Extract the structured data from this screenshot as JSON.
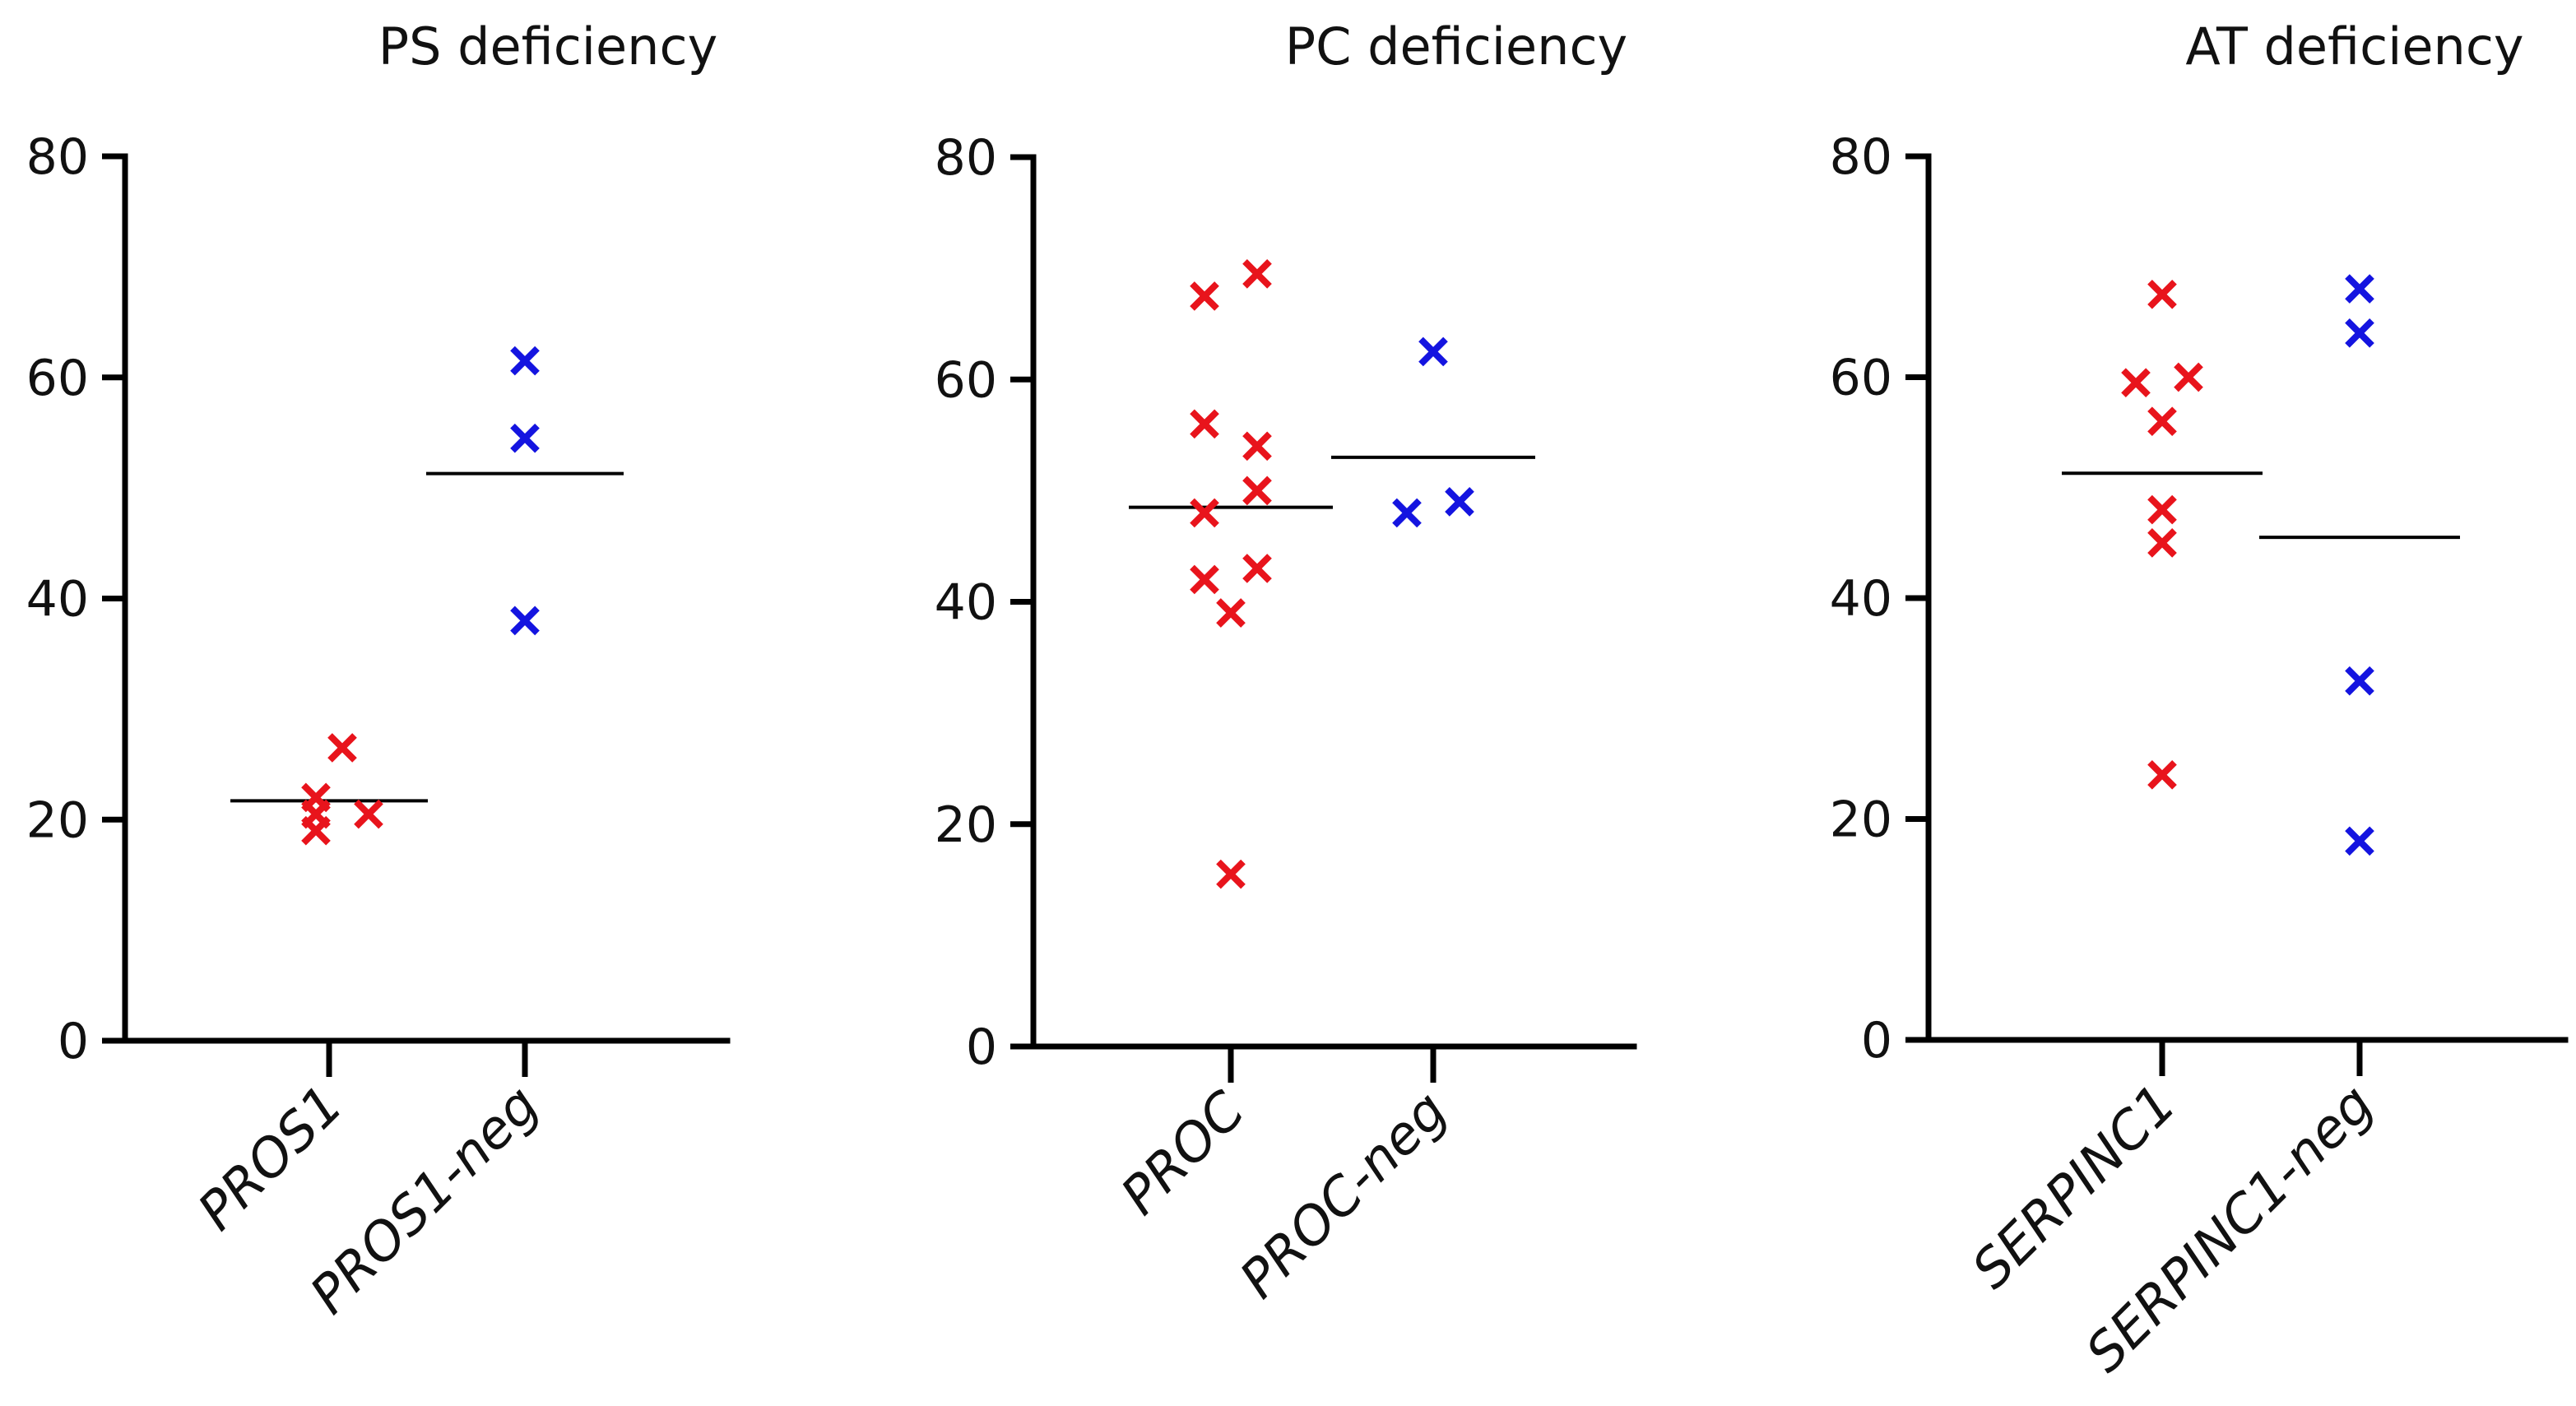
{
  "colors": {
    "group1": "#e8141c",
    "group2": "#1414e0",
    "axis": "#000000"
  },
  "chart_data": [
    {
      "type": "scatter",
      "title": "PS deficiency",
      "ylim": [
        0,
        80
      ],
      "yticks": [
        0,
        20,
        40,
        60,
        80
      ],
      "categories": [
        "PROS1",
        "PROS1-neg"
      ],
      "series": [
        {
          "category": "PROS1",
          "points": [
            {
              "offset": -0.5,
              "y": 22
            },
            {
              "offset": 0.5,
              "y": 26.5
            },
            {
              "offset": -0.5,
              "y": 20.5
            },
            {
              "offset": 1.5,
              "y": 20.5
            },
            {
              "offset": -0.5,
              "y": 19
            }
          ],
          "mean": 21.7
        },
        {
          "category": "PROS1-neg",
          "points": [
            {
              "offset": 0,
              "y": 61.5
            },
            {
              "offset": 0,
              "y": 54.5
            },
            {
              "offset": 0,
              "y": 38
            }
          ],
          "mean": 51.3
        }
      ]
    },
    {
      "type": "scatter",
      "title": "PC deficiency",
      "ylim": [
        0,
        80
      ],
      "yticks": [
        0,
        20,
        40,
        60,
        80
      ],
      "categories": [
        "PROC",
        "PROC-neg"
      ],
      "series": [
        {
          "category": "PROC",
          "points": [
            {
              "offset": -1,
              "y": 67.5
            },
            {
              "offset": 1,
              "y": 69.5
            },
            {
              "offset": -1,
              "y": 56
            },
            {
              "offset": 1,
              "y": 54
            },
            {
              "offset": 1,
              "y": 50
            },
            {
              "offset": -1,
              "y": 48
            },
            {
              "offset": 1,
              "y": 43
            },
            {
              "offset": -1,
              "y": 42
            },
            {
              "offset": 0,
              "y": 39
            },
            {
              "offset": 0,
              "y": 15.5
            }
          ],
          "mean": 48.5
        },
        {
          "category": "PROC-neg",
          "points": [
            {
              "offset": 0,
              "y": 62.5
            },
            {
              "offset": 1,
              "y": 49
            },
            {
              "offset": -1,
              "y": 48
            }
          ],
          "mean": 53
        }
      ]
    },
    {
      "type": "scatter",
      "title": "AT deficiency",
      "ylim": [
        0,
        80
      ],
      "yticks": [
        0,
        20,
        40,
        60,
        80
      ],
      "categories": [
        "SERPINC1",
        "SERPINC1-neg"
      ],
      "series": [
        {
          "category": "SERPINC1",
          "points": [
            {
              "offset": 0,
              "y": 67.5
            },
            {
              "offset": 1,
              "y": 60
            },
            {
              "offset": -1,
              "y": 59.5
            },
            {
              "offset": 0,
              "y": 56
            },
            {
              "offset": 0,
              "y": 48
            },
            {
              "offset": 0,
              "y": 45
            },
            {
              "offset": 0,
              "y": 24
            }
          ],
          "mean": 51.3
        },
        {
          "category": "SERPINC1-neg",
          "points": [
            {
              "offset": 0,
              "y": 68
            },
            {
              "offset": 0,
              "y": 64
            },
            {
              "offset": 0,
              "y": 32.5
            },
            {
              "offset": 0,
              "y": 18
            }
          ],
          "mean": 45.5
        }
      ]
    }
  ]
}
